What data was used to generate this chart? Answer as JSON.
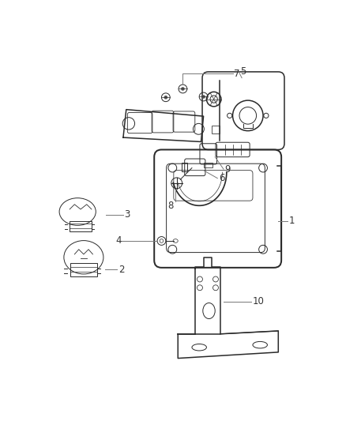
{
  "bg_color": "#ffffff",
  "line_color": "#2a2a2a",
  "leader_color": "#777777",
  "figsize": [
    4.38,
    5.33
  ],
  "dpi": 100,
  "lw": 1.1,
  "lw_thin": 0.7
}
